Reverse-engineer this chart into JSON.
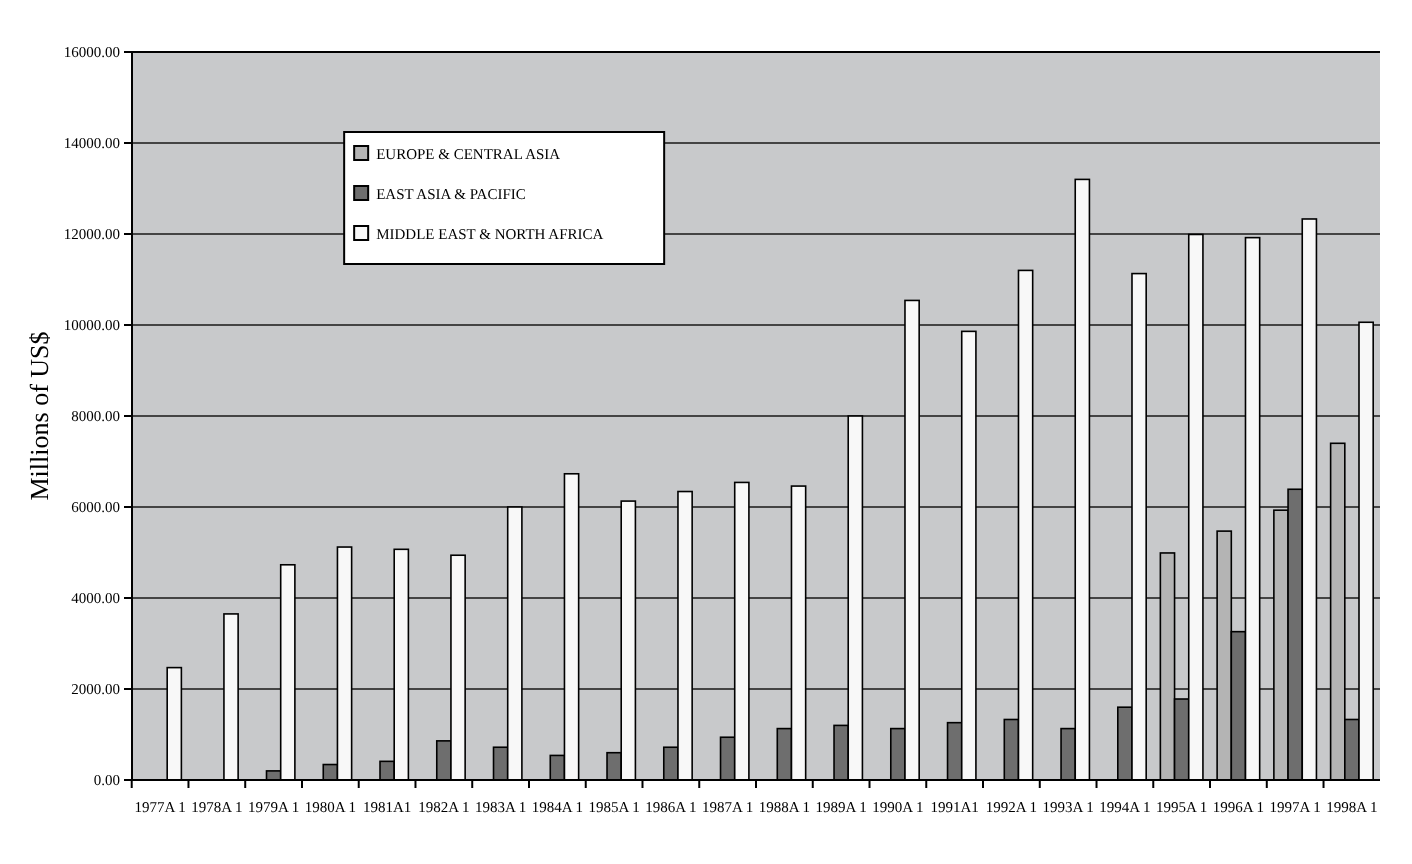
{
  "chart_data": {
    "type": "bar",
    "ylabel": "Millions of US$",
    "categories": [
      "1977A 1",
      "1978A 1",
      "1979A 1",
      "1980A 1",
      "1981A1",
      "1982A 1",
      "1983A 1",
      "1984A 1",
      "1985A 1",
      "1986A 1",
      "1987A 1",
      "1988A 1",
      "1989A 1",
      "1990A 1",
      "1991A1",
      "1992A 1",
      "1993A 1",
      "1994A 1",
      "1995A 1",
      "1996A 1",
      "1997A 1",
      "1998A 1"
    ],
    "series": [
      {
        "name": "EUROPE & CENTRAL ASIA",
        "color": "#b4b4b4",
        "values": [
          null,
          null,
          null,
          null,
          null,
          null,
          null,
          null,
          null,
          null,
          null,
          null,
          null,
          null,
          null,
          null,
          null,
          null,
          4990,
          5470,
          5930,
          7400
        ]
      },
      {
        "name": "EAST ASIA & PACIFIC",
        "color": "#6e6e6e",
        "values": [
          null,
          null,
          200,
          340,
          410,
          860,
          720,
          540,
          600,
          720,
          940,
          1130,
          1200,
          1130,
          1260,
          1330,
          1130,
          1600,
          1780,
          3260,
          6390,
          1330
        ]
      },
      {
        "name": "MIDDLE EAST & NORTH AFRICA",
        "color": "#f8f8f8",
        "values": [
          2470,
          3650,
          4730,
          5120,
          5070,
          4940,
          6000,
          6730,
          6130,
          6340,
          6540,
          6460,
          8000,
          10540,
          9860,
          11200,
          13200,
          11130,
          11990,
          11920,
          12330,
          10060
        ]
      }
    ],
    "ylim": [
      0,
      16000
    ],
    "yticks": [
      {
        "value": 0,
        "label": "0.00"
      },
      {
        "value": 2000,
        "label": "2000.00"
      },
      {
        "value": 4000,
        "label": "4000.00"
      },
      {
        "value": 6000,
        "label": "6000.00"
      },
      {
        "value": 8000,
        "label": "8000.00"
      },
      {
        "value": 10000,
        "label": "10000.00"
      },
      {
        "value": 12000,
        "label": "12000.00"
      },
      {
        "value": 14000,
        "label": "14000.00"
      },
      {
        "value": 16000,
        "label": "16000.00"
      }
    ],
    "grid": "y",
    "legend": "top left"
  }
}
